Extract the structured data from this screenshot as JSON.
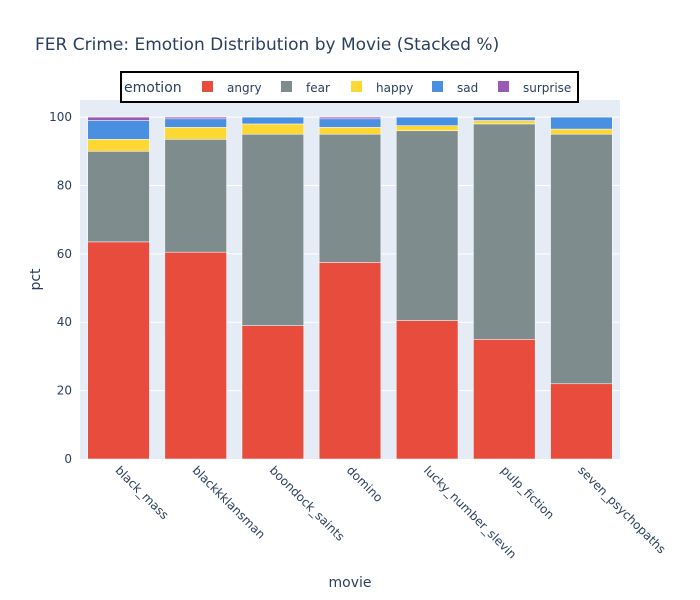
{
  "chart_data": {
    "type": "bar",
    "stacked": true,
    "title": "FER Crime: Emotion Distribution by Movie (Stacked %)",
    "xlabel": "movie",
    "ylabel": "pct",
    "ylim": [
      0,
      105
    ],
    "yticks": [
      0,
      20,
      40,
      60,
      80,
      100
    ],
    "legend_title": "emotion",
    "legend_position": "top",
    "categories": [
      "black_mass",
      "blackkklansman",
      "boondock_saints",
      "domino",
      "lucky_number_slevin",
      "pulp_fiction",
      "seven_psychopaths"
    ],
    "series": [
      {
        "name": "angry",
        "color": "#e74c3c",
        "values": [
          63.5,
          60.5,
          39.0,
          57.5,
          40.5,
          35.0,
          22.0
        ]
      },
      {
        "name": "fear",
        "color": "#7f8c8d",
        "values": [
          26.5,
          33.0,
          56.0,
          37.5,
          55.5,
          63.0,
          73.0
        ]
      },
      {
        "name": "happy",
        "color": "#fdd835",
        "values": [
          3.5,
          3.5,
          3.0,
          2.0,
          1.5,
          1.0,
          1.5
        ]
      },
      {
        "name": "sad",
        "color": "#4a90e2",
        "values": [
          5.5,
          2.5,
          2.0,
          2.5,
          2.5,
          1.0,
          3.5
        ]
      },
      {
        "name": "surprise",
        "color": "#9b59b6",
        "values": [
          1.0,
          0.5,
          0.0,
          0.5,
          0.0,
          0.0,
          0.0
        ]
      }
    ]
  }
}
